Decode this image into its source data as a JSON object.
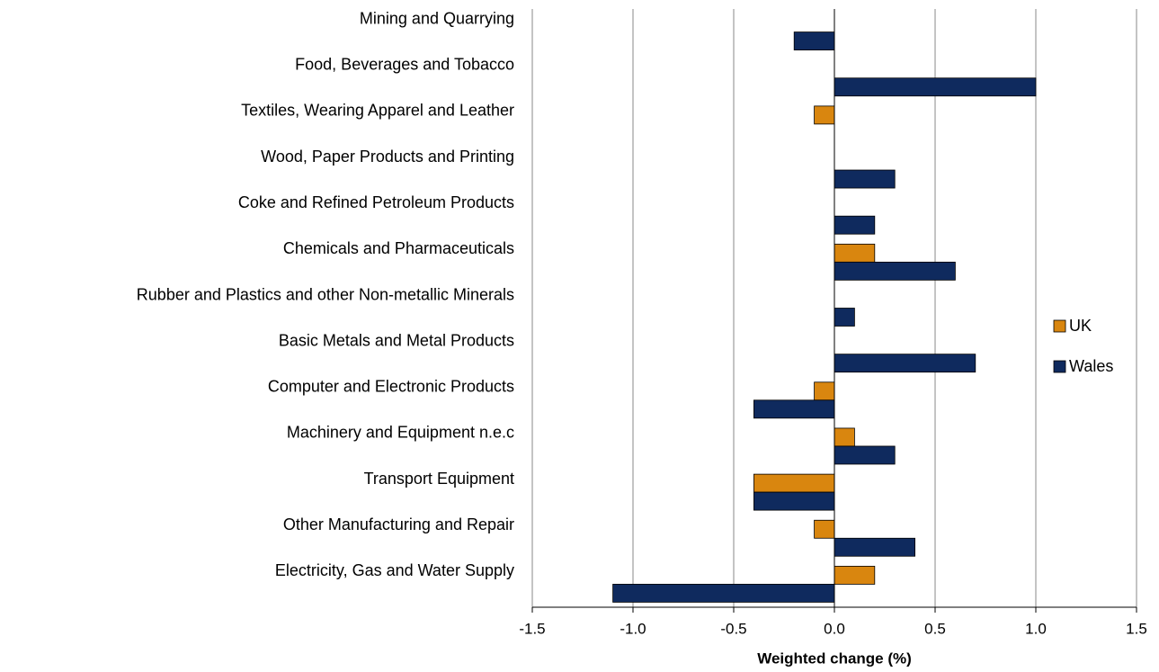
{
  "chart_data": {
    "type": "bar",
    "orientation": "horizontal",
    "x_label": "Weighted change (%)",
    "categories": [
      "Mining and Quarrying",
      "Food, Beverages and Tobacco",
      "Textiles, Wearing Apparel and Leather",
      "Wood, Paper Products and Printing",
      "Coke and Refined Petroleum Products",
      "Chemicals and Pharmaceuticals",
      "Rubber and Plastics and other Non-metallic Minerals",
      "Basic Metals and Metal Products",
      "Computer and Electronic Products",
      "Machinery and Equipment n.e.c",
      "Transport Equipment",
      "Other Manufacturing and Repair",
      "Electricity, Gas and Water Supply"
    ],
    "series": [
      {
        "name": "UK",
        "color": "#d9860f",
        "values": [
          0,
          0,
          -0.1,
          0,
          0,
          0.2,
          0,
          0,
          -0.1,
          0.1,
          -0.4,
          -0.1,
          0.2
        ]
      },
      {
        "name": "Wales",
        "color": "#0f2a5e",
        "values": [
          -0.2,
          1.0,
          0,
          0.3,
          0.2,
          0.6,
          0.1,
          0.7,
          -0.4,
          0.3,
          -0.4,
          0.4,
          -1.1
        ]
      }
    ],
    "xlim": [
      -1.5,
      1.5
    ],
    "xticks": [
      -1.5,
      {
        "value": -1,
        "label": "-1.0"
      },
      -0.5,
      {
        "value": 0,
        "label": "0.0"
      },
      0.5,
      {
        "value": 1,
        "label": "1.0"
      },
      1.5
    ],
    "grid": true,
    "legend": "right"
  }
}
